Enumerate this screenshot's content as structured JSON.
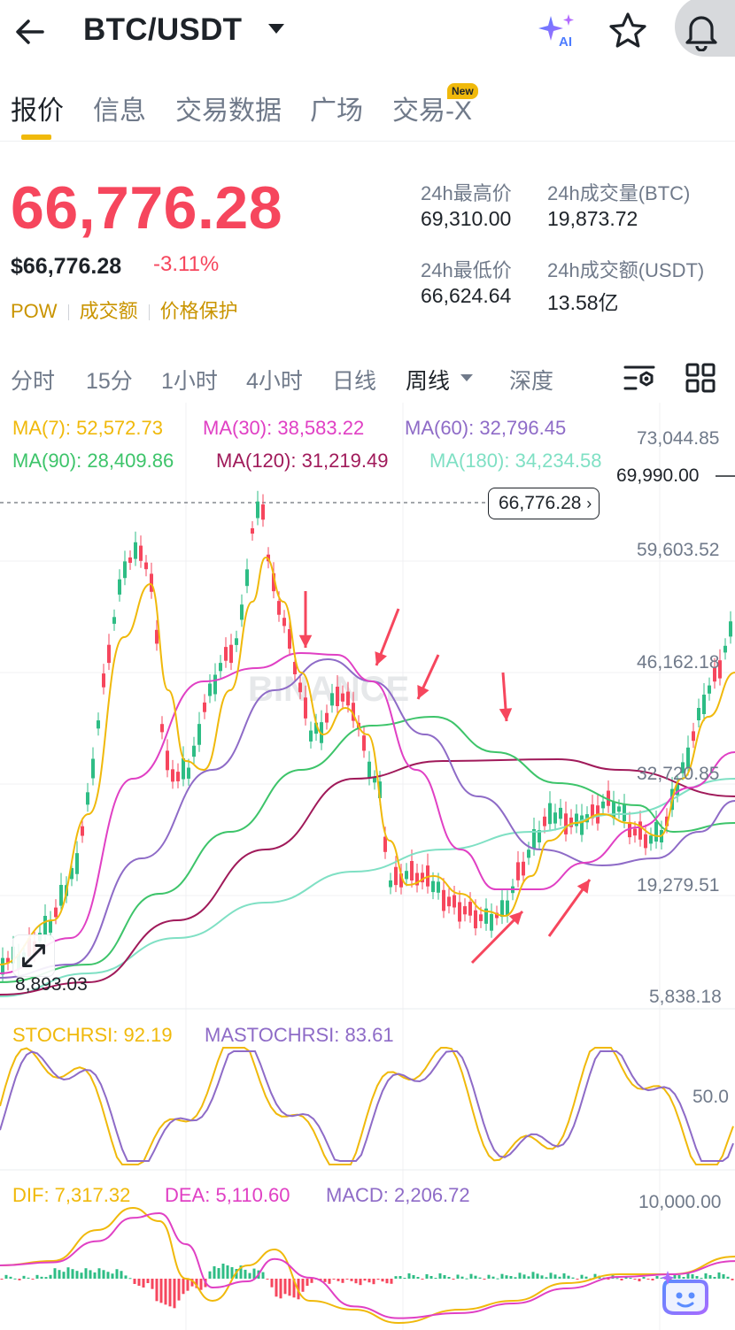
{
  "header": {
    "pair": "BTC/USDT",
    "ai_label": "AI"
  },
  "tabs": [
    {
      "label": "报价",
      "active": true
    },
    {
      "label": "信息",
      "active": false
    },
    {
      "label": "交易数据",
      "active": false
    },
    {
      "label": "广场",
      "active": false
    },
    {
      "label": "交易-X",
      "active": false
    }
  ],
  "new_badge": "New",
  "price": {
    "last": "66,776.28",
    "usd": "$66,776.28",
    "change": "-3.11%",
    "tags": [
      "POW",
      "成交额",
      "价格保护"
    ]
  },
  "stats": {
    "high_label": "24h最高价",
    "high_value": "69,310.00",
    "vol_btc_label": "24h成交量(BTC)",
    "vol_btc_value": "19,873.72",
    "low_label": "24h最低价",
    "low_value": "66,624.64",
    "vol_usdt_label": "24h成交额(USDT)",
    "vol_usdt_value": "13.58亿"
  },
  "timeframes": [
    {
      "label": "分时",
      "active": false
    },
    {
      "label": "15分",
      "active": false
    },
    {
      "label": "1小时",
      "active": false
    },
    {
      "label": "4小时",
      "active": false
    },
    {
      "label": "日线",
      "active": false
    },
    {
      "label": "周线",
      "active": true
    },
    {
      "label": "深度",
      "active": false
    }
  ],
  "ma_legend": {
    "ma7": "MA(7): 52,572.73",
    "ma30": "MA(30): 38,583.22",
    "ma60": "MA(60): 32,796.45",
    "ma90": "MA(90): 28,409.86",
    "ma120": "MA(120): 31,219.49",
    "ma180": "MA(180): 34,234.58"
  },
  "colors": {
    "up": "#2ebd85",
    "down": "#f6465d",
    "ma7": "#f0b90b",
    "ma30": "#e040c4",
    "ma60": "#8e6bc7",
    "ma90": "#3dc46a",
    "ma120": "#a01a5a",
    "ma180": "#7fe0c4"
  },
  "price_axis": {
    "labels": [
      "73,044.85",
      "59,603.52",
      "46,162.18",
      "32,720.85",
      "19,279.51",
      "5,838.18"
    ],
    "high_marker": "69,990.00",
    "low_marker": "8,893.03",
    "current": "66,776.28"
  },
  "stochrsi": {
    "stoch": "STOCHRSI: 92.19",
    "mastoch": "MASTOCHRSI: 83.61",
    "axis_mid": "50.0"
  },
  "macd": {
    "dif": "DIF: 7,317.32",
    "dea": "DEA: 5,110.60",
    "macd": "MACD: 2,206.72",
    "axis_top": "10,000.00"
  },
  "watermark": "BINANCE"
}
